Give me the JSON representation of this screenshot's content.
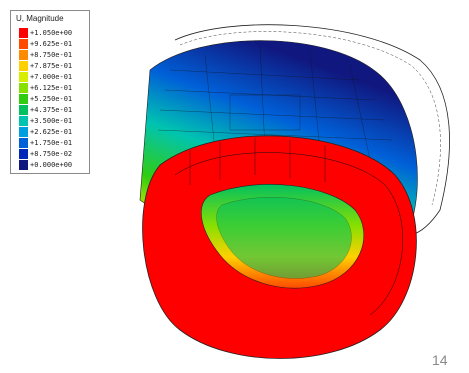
{
  "legend": {
    "title": "U, Magnitude",
    "entries": [
      {
        "label": "+1.050e+00",
        "color": "#ff0000"
      },
      {
        "label": "+9.625e-01",
        "color": "#ff4a00"
      },
      {
        "label": "+8.750e-01",
        "color": "#ff8c00"
      },
      {
        "label": "+7.875e-01",
        "color": "#ffd000"
      },
      {
        "label": "+7.000e-01",
        "color": "#d8ee00"
      },
      {
        "label": "+6.125e-01",
        "color": "#88e000"
      },
      {
        "label": "+5.250e-01",
        "color": "#30cc10"
      },
      {
        "label": "+4.375e-01",
        "color": "#00c060"
      },
      {
        "label": "+3.500e-01",
        "color": "#00c4b0"
      },
      {
        "label": "+2.625e-01",
        "color": "#00a0e0"
      },
      {
        "label": "+1.750e-01",
        "color": "#0060d8"
      },
      {
        "label": "+8.750e-02",
        "color": "#0028b8"
      },
      {
        "label": "+0.000e+00",
        "color": "#101880"
      }
    ]
  },
  "page_number": "14"
}
